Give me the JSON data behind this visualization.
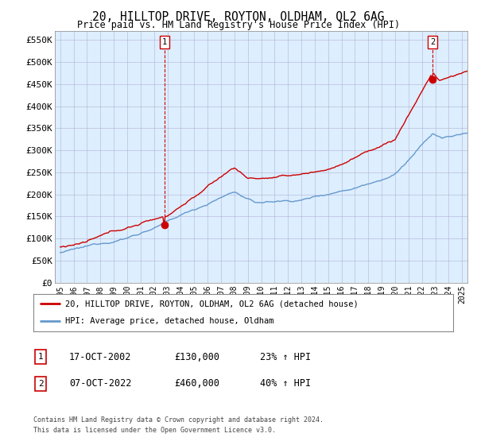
{
  "title": "20, HILLTOP DRIVE, ROYTON, OLDHAM, OL2 6AG",
  "subtitle": "Price paid vs. HM Land Registry's House Price Index (HPI)",
  "ylim": [
    0,
    570000
  ],
  "yticks": [
    0,
    50000,
    100000,
    150000,
    200000,
    250000,
    300000,
    350000,
    400000,
    450000,
    500000,
    550000
  ],
  "ytick_labels": [
    "£0",
    "£50K",
    "£100K",
    "£150K",
    "£200K",
    "£250K",
    "£300K",
    "£350K",
    "£400K",
    "£450K",
    "£500K",
    "£550K"
  ],
  "sale1_year_f": 2002.79,
  "sale1_price": 130000,
  "sale1_pct": "23%",
  "sale1_date": "17-OCT-2002",
  "sale2_year_f": 2022.79,
  "sale2_price": 460000,
  "sale2_pct": "40%",
  "sale2_date": "07-OCT-2022",
  "legend_line1": "20, HILLTOP DRIVE, ROYTON, OLDHAM, OL2 6AG (detached house)",
  "legend_line2": "HPI: Average price, detached house, Oldham",
  "footer1": "Contains HM Land Registry data © Crown copyright and database right 2024.",
  "footer2": "This data is licensed under the Open Government Licence v3.0.",
  "red_color": "#cc0000",
  "blue_color": "#6699cc",
  "plot_bg_color": "#ddeeff",
  "background_color": "#ffffff",
  "grid_color": "#aaaacc"
}
